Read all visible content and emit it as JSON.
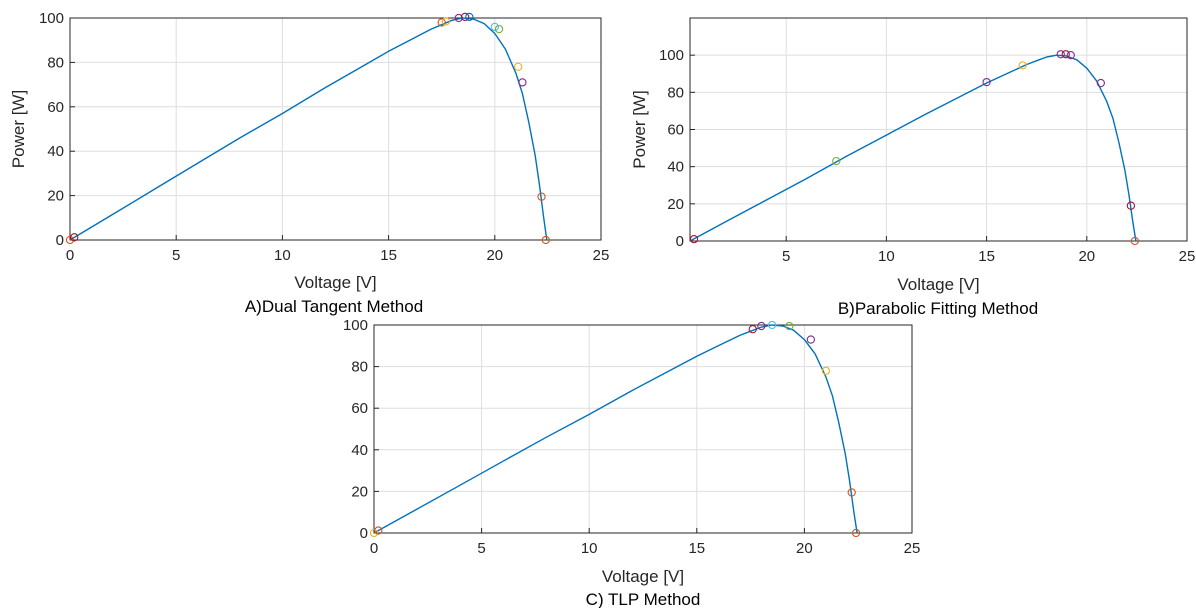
{
  "colors": {
    "curve": "#0072BD",
    "markers": [
      "#D95319",
      "#EDB120",
      "#7E2F8E",
      "#77AC30",
      "#4DBEEE",
      "#A2142F",
      "#0072BD"
    ]
  },
  "chart_data": [
    {
      "type": "line",
      "caption": "A)Dual Tangent Method",
      "xlabel": "Voltage [V]",
      "ylabel": "Power [W]",
      "xlim": [
        0,
        25
      ],
      "ylim": [
        0,
        100
      ],
      "xticks": [
        "0",
        "5",
        "10",
        "15",
        "20",
        "25"
      ],
      "yticks": [
        "0",
        "20",
        "40",
        "60",
        "80",
        "100"
      ],
      "grid": true,
      "curve": {
        "x": [
          0,
          2,
          4,
          6,
          8,
          10,
          12,
          14,
          15,
          16,
          17,
          17.5,
          18,
          18.5,
          19,
          19.5,
          20,
          20.5,
          21,
          21.3,
          21.6,
          21.9,
          22.1,
          22.3,
          22.45
        ],
        "y": [
          0,
          11.5,
          23,
          34.5,
          46,
          57,
          68.5,
          79.5,
          85,
          90,
          95,
          97,
          99,
          100,
          99.5,
          97.5,
          93,
          86,
          75,
          66,
          53,
          38,
          25,
          10,
          0
        ]
      },
      "markers": [
        {
          "x": 0.0,
          "y": 0.0,
          "color": "#D95319"
        },
        {
          "x": 0.2,
          "y": 1.2,
          "color": "#A2142F"
        },
        {
          "x": 17.5,
          "y": 98,
          "color": "#D95319"
        },
        {
          "x": 17.7,
          "y": 98.5,
          "color": "#EDB120"
        },
        {
          "x": 18.3,
          "y": 100,
          "color": "#7E2F8E"
        },
        {
          "x": 18.6,
          "y": 100.5,
          "color": "#A2142F"
        },
        {
          "x": 18.8,
          "y": 100.5,
          "color": "#0072BD"
        },
        {
          "x": 20.0,
          "y": 96,
          "color": "#4DBEEE"
        },
        {
          "x": 20.2,
          "y": 95,
          "color": "#77AC30"
        },
        {
          "x": 21.1,
          "y": 78,
          "color": "#EDB120"
        },
        {
          "x": 21.3,
          "y": 71,
          "color": "#7E2F8E"
        },
        {
          "x": 22.2,
          "y": 19.5,
          "color": "#D95319"
        },
        {
          "x": 22.4,
          "y": 0,
          "color": "#D95319"
        }
      ]
    },
    {
      "type": "line",
      "caption": "B)Parabolic Fitting Method",
      "xlabel": "Voltage [V]",
      "ylabel": "Power [W]",
      "xlim": [
        0.2,
        25
      ],
      "ylim": [
        0,
        120
      ],
      "xticks": [
        "5",
        "10",
        "15",
        "20",
        "25"
      ],
      "yticks": [
        "0",
        "20",
        "40",
        "60",
        "80",
        "100"
      ],
      "grid": true,
      "curve": {
        "x": [
          0.2,
          2,
          4,
          6,
          8,
          10,
          12,
          14,
          15,
          16,
          17,
          17.5,
          18,
          18.5,
          19,
          19.5,
          20,
          20.5,
          21,
          21.3,
          21.6,
          21.9,
          22.1,
          22.3,
          22.45
        ],
        "y": [
          0,
          10.5,
          22,
          33.5,
          45.5,
          57,
          68.5,
          79.5,
          85,
          90,
          95,
          97,
          99,
          100,
          99.5,
          97.5,
          93,
          86,
          75,
          66,
          53,
          38,
          25,
          10,
          0
        ]
      },
      "markers": [
        {
          "x": 0.4,
          "y": 1,
          "color": "#A2142F"
        },
        {
          "x": 7.5,
          "y": 43,
          "color": "#77AC30"
        },
        {
          "x": 15.0,
          "y": 85.5,
          "color": "#7E2F8E"
        },
        {
          "x": 16.8,
          "y": 94.5,
          "color": "#EDB120"
        },
        {
          "x": 18.7,
          "y": 100.5,
          "color": "#7E2F8E"
        },
        {
          "x": 18.95,
          "y": 100.5,
          "color": "#A2142F"
        },
        {
          "x": 19.2,
          "y": 100,
          "color": "#7E2F8E"
        },
        {
          "x": 20.7,
          "y": 85,
          "color": "#7E2F8E"
        },
        {
          "x": 22.2,
          "y": 19,
          "color": "#A2142F"
        },
        {
          "x": 22.4,
          "y": 0,
          "color": "#D95319"
        }
      ]
    },
    {
      "type": "line",
      "caption": "C) TLP Method",
      "xlabel": "Voltage [V]",
      "ylabel": "",
      "xlim": [
        0,
        25
      ],
      "ylim": [
        0,
        100
      ],
      "xticks": [
        "0",
        "5",
        "10",
        "15",
        "20",
        "25"
      ],
      "yticks": [
        "0",
        "20",
        "40",
        "60",
        "80",
        "100"
      ],
      "grid": true,
      "curve": {
        "x": [
          0,
          2,
          4,
          6,
          8,
          10,
          12,
          14,
          15,
          16,
          17,
          17.5,
          18,
          18.5,
          19,
          19.5,
          20,
          20.5,
          21,
          21.3,
          21.6,
          21.9,
          22.1,
          22.3,
          22.45
        ],
        "y": [
          0,
          11.5,
          23,
          34.5,
          46,
          57,
          68.5,
          79.5,
          85,
          90,
          95,
          97,
          99,
          100,
          99.5,
          97.5,
          93,
          86,
          75,
          66,
          53,
          38,
          25,
          10,
          0
        ]
      },
      "markers": [
        {
          "x": 0.0,
          "y": 0,
          "color": "#EDB120"
        },
        {
          "x": 0.2,
          "y": 1.2,
          "color": "#D95319"
        },
        {
          "x": 17.6,
          "y": 98,
          "color": "#A2142F"
        },
        {
          "x": 18.0,
          "y": 99.5,
          "color": "#7E2F8E"
        },
        {
          "x": 18.5,
          "y": 100,
          "color": "#4DBEEE"
        },
        {
          "x": 19.3,
          "y": 99.5,
          "color": "#77AC30"
        },
        {
          "x": 20.3,
          "y": 93,
          "color": "#7E2F8E"
        },
        {
          "x": 21.0,
          "y": 78,
          "color": "#EDB120"
        },
        {
          "x": 22.2,
          "y": 19.5,
          "color": "#D95319"
        },
        {
          "x": 22.4,
          "y": 0,
          "color": "#D95319"
        }
      ]
    }
  ]
}
